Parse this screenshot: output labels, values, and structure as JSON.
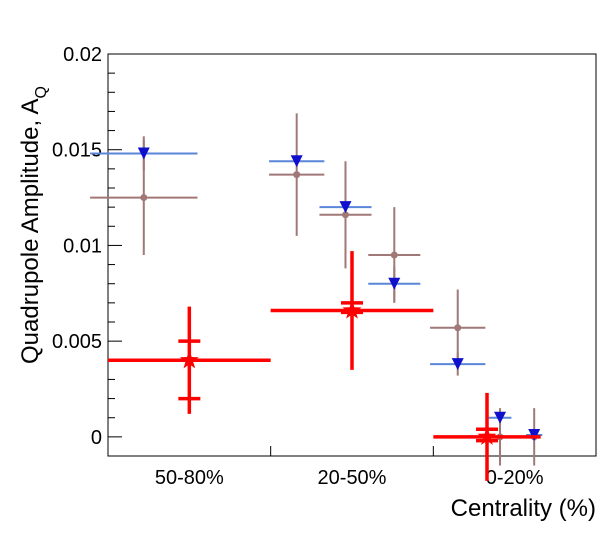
{
  "chart_data": {
    "type": "scatter",
    "title": "",
    "xlabel": "Centrality (%)",
    "ylabel_main": "Quadrupole Amplitude, A",
    "ylabel_sub": "Q",
    "x_categories": [
      "50-80%",
      "20-50%",
      "0-20%"
    ],
    "ylim": [
      -0.001,
      0.02
    ],
    "y_ticks": [
      0,
      0.005,
      0.01,
      0.015,
      0.02
    ],
    "y_tick_labels": [
      "0",
      "0.005",
      "0.01",
      "0.015",
      "0.02"
    ],
    "grid": false,
    "series": [
      {
        "marker": "triangle-down",
        "color": "#1010cc",
        "xerr_color": "#5a86d8",
        "yerr_color": "#a07878",
        "points": [
          {
            "x": 1.22,
            "xerr": 0.33,
            "y": 0.0148,
            "yerr": 0.0009
          },
          {
            "x": 2.16,
            "xerr": 0.17,
            "y": 0.0144,
            "yerr": 0.0
          },
          {
            "x": 2.46,
            "xerr": 0.16,
            "y": 0.012,
            "yerr": 0.0
          },
          {
            "x": 2.76,
            "xerr": 0.16,
            "y": 0.008,
            "yerr": 0.0009
          },
          {
            "x": 3.15,
            "xerr": 0.17,
            "y": 0.0038,
            "yerr": 0.0006
          },
          {
            "x": 3.41,
            "xerr": 0.07,
            "y": 0.001,
            "yerr": 0.0
          },
          {
            "x": 3.62,
            "xerr": 0.05,
            "y": 0.0001,
            "yerr": 0.0
          }
        ]
      },
      {
        "marker": "circle",
        "color": "#a07878",
        "points": [
          {
            "x": 1.22,
            "xerr": 0.33,
            "y": 0.0125,
            "yerr": 0.003
          },
          {
            "x": 2.16,
            "xerr": 0.17,
            "y": 0.0137,
            "yerr": 0.0032
          },
          {
            "x": 2.46,
            "xerr": 0.16,
            "y": 0.0116,
            "yerr": 0.0028
          },
          {
            "x": 2.76,
            "xerr": 0.16,
            "y": 0.0095,
            "yerr": 0.0025
          },
          {
            "x": 3.15,
            "xerr": 0.17,
            "y": 0.0057,
            "yerr": 0.002
          },
          {
            "x": 3.41,
            "xerr": 0.0,
            "y": 0.0,
            "yerr": 0.0015
          },
          {
            "x": 3.62,
            "xerr": 0.0,
            "y": 0.0,
            "yerr": 0.0015
          }
        ]
      },
      {
        "marker": "star",
        "color": "#ff0000",
        "points": [
          {
            "x": 1.5,
            "xerr": 0.5,
            "y": 0.004,
            "yerr": 0.0028,
            "sys_low": 0.002,
            "sys_high": 0.005
          },
          {
            "x": 2.5,
            "xerr": 0.5,
            "y": 0.0066,
            "yerr": 0.0031,
            "sys_low": 0.0065,
            "sys_high": 0.007
          },
          {
            "x": 3.33,
            "xerr": 0.33,
            "y": 0.0,
            "yerr": 0.0023,
            "sys_low": -0.0002,
            "sys_high": 0.0004
          }
        ]
      }
    ]
  }
}
